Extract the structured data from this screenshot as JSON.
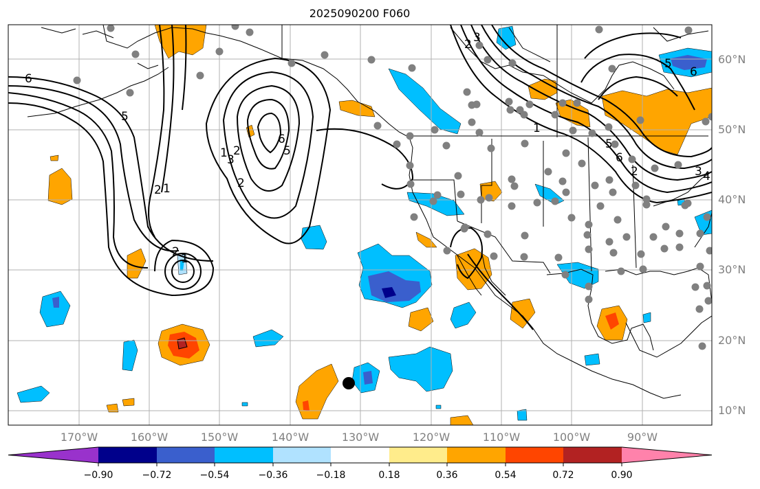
{
  "title": "2025090200 F060",
  "map": {
    "projection": "PlateCarree",
    "lon_range": [
      -180,
      -80
    ],
    "lat_range": [
      8,
      65
    ],
    "lat_labels": [
      "10°N",
      "20°N",
      "30°N",
      "40°N",
      "50°N",
      "60°N"
    ],
    "lon_labels": [
      "170°W",
      "160°W",
      "150°W",
      "140°W",
      "130°W",
      "120°W",
      "110°W",
      "100°W",
      "90°W"
    ],
    "grid": true,
    "contour_labels": [
      "6",
      "5",
      "2",
      "1",
      "2",
      "1",
      "6",
      "5",
      "2",
      "2",
      "3",
      "1",
      "2",
      "3",
      "5",
      "6",
      "1",
      "2",
      "3",
      "4",
      "5",
      "6"
    ],
    "station_marker_color": "#808080",
    "highlight_marker_color": "#000000"
  },
  "colorbar": {
    "orientation": "horizontal",
    "extend": "both",
    "colors": [
      "#9932cc",
      "#00008b",
      "#3a5fcd",
      "#00bfff",
      "#b0e2ff",
      "#ffffff",
      "#ffec8b",
      "#ffa500",
      "#ff4500",
      "#b22222",
      "#ff82ab"
    ],
    "tick_labels": [
      "−0.90",
      "−0.72",
      "−0.54",
      "−0.36",
      "−0.18",
      "0.18",
      "0.36",
      "0.54",
      "0.72",
      "0.90"
    ]
  }
}
